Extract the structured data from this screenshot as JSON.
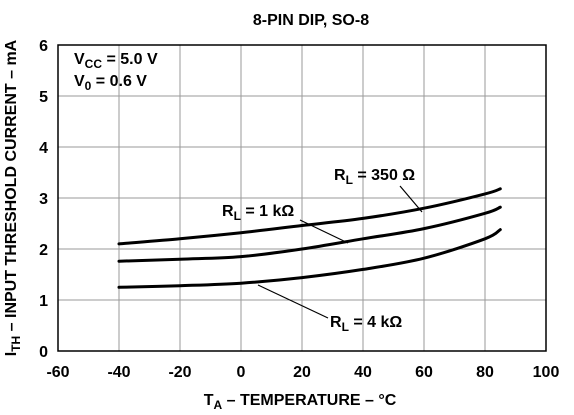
{
  "chart_data": {
    "type": "line",
    "title": "8-PIN DIP, SO-8",
    "xlabel": {
      "main": "T",
      "sub": "A",
      "rest": " – TEMPERATURE – °C"
    },
    "ylabel": {
      "main": "I",
      "sub": "TH",
      "rest": " – INPUT THRESHOLD CURRENT – mA"
    },
    "xlim": [
      -60,
      100
    ],
    "ylim": [
      0,
      6
    ],
    "xticks": [
      "-60",
      "-40",
      "-20",
      "0",
      "20",
      "40",
      "60",
      "80",
      "100"
    ],
    "yticks": [
      "0",
      "1",
      "2",
      "3",
      "4",
      "5",
      "6"
    ],
    "grid": true,
    "conditions": [
      {
        "main": "V",
        "sub": "CC",
        "rest": " = 5.0 V"
      },
      {
        "main": "V",
        "sub": "0",
        "rest": " = 0.6 V"
      }
    ],
    "series": [
      {
        "name": {
          "main": "R",
          "sub": "L",
          "rest": " = 350 Ω"
        },
        "x": [
          -40,
          -20,
          0,
          20,
          40,
          60,
          80,
          85
        ],
        "y": [
          2.1,
          2.2,
          2.32,
          2.46,
          2.6,
          2.8,
          3.08,
          3.18
        ]
      },
      {
        "name": {
          "main": "R",
          "sub": "L",
          "rest": " = 1 kΩ"
        },
        "x": [
          -40,
          -20,
          0,
          20,
          40,
          60,
          80,
          85
        ],
        "y": [
          1.76,
          1.8,
          1.85,
          2.0,
          2.2,
          2.4,
          2.7,
          2.82
        ]
      },
      {
        "name": {
          "main": "R",
          "sub": "L",
          "rest": " = 4 kΩ"
        },
        "x": [
          -40,
          -20,
          0,
          20,
          40,
          60,
          80,
          85
        ],
        "y": [
          1.25,
          1.28,
          1.33,
          1.44,
          1.6,
          1.82,
          2.2,
          2.38
        ]
      }
    ]
  }
}
